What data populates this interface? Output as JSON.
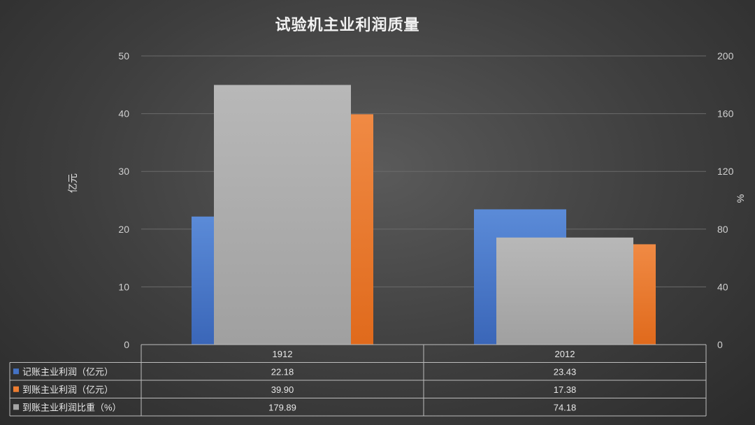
{
  "chart_data": {
    "type": "bar",
    "title": "试验机主业利润质量",
    "categories": [
      "1912",
      "2012"
    ],
    "ylabel_left": "亿元",
    "ylabel_right": "%",
    "ylim_left": [
      0,
      50
    ],
    "ylim_right": [
      0,
      200
    ],
    "yticks_left": [
      "0",
      "10",
      "20",
      "30",
      "40",
      "50"
    ],
    "yticks_right": [
      "0",
      "40",
      "80",
      "120",
      "160",
      "200"
    ],
    "grid": true,
    "legend": "data-table",
    "series": [
      {
        "name": "记账主业利润（亿元）",
        "axis": "left",
        "color": "#4472c4",
        "values": [
          22.18,
          23.43
        ],
        "labels": [
          "22.18",
          "23.43"
        ]
      },
      {
        "name": "到账主业利润（亿元）",
        "axis": "left",
        "color": "#ed7d31",
        "values": [
          39.9,
          17.38
        ],
        "labels": [
          "39.90",
          "17.38"
        ]
      },
      {
        "name": "到账主业利润比重（%）",
        "axis": "right",
        "color": "#a5a5a5",
        "values": [
          179.89,
          74.18
        ],
        "labels": [
          "179.89",
          "74.18"
        ]
      }
    ]
  }
}
